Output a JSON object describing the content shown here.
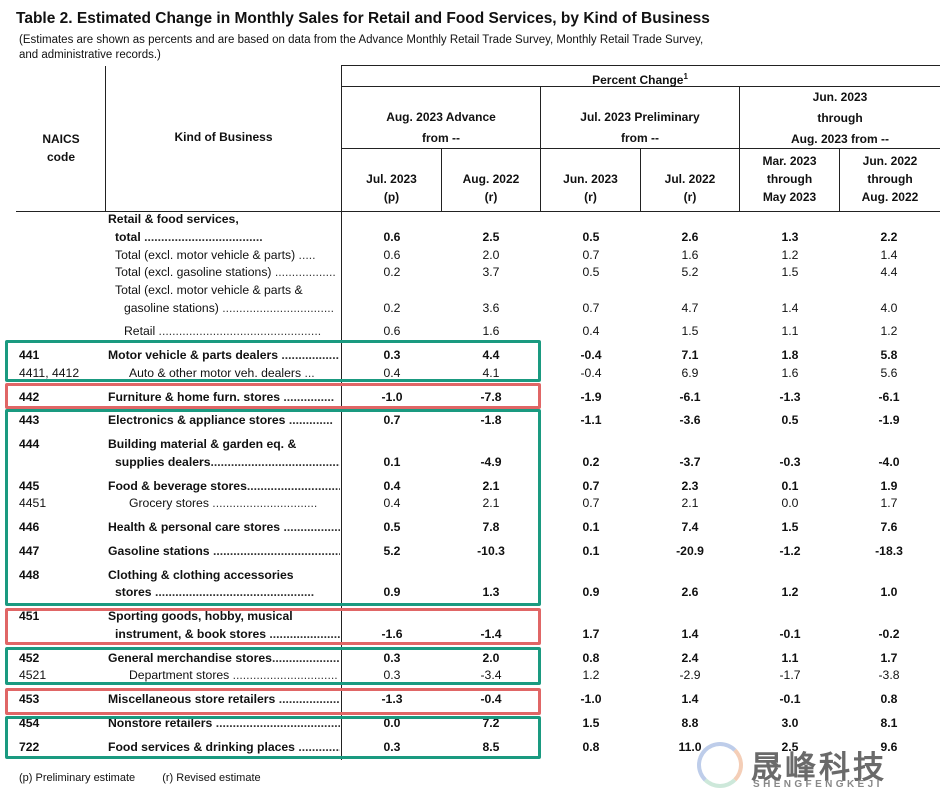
{
  "title": "Table 2.  Estimated Change in Monthly Sales for Retail and Food Services, by Kind of Business",
  "subtitle_line1": "(Estimates are shown as percents and are based on data from the Advance Monthly Retail Trade Survey,  Monthly Retail Trade Survey,",
  "subtitle_line2": "and administrative records.)",
  "header": {
    "naics_1": "NAICS",
    "naics_2": "code",
    "kind": "Kind of Business",
    "percent_change": "Percent Change",
    "superscript": "1",
    "group1_a": "Aug. 2023 Advance",
    "group1_b": "from --",
    "group2_a": "Jul. 2023 Preliminary",
    "group2_b": "from --",
    "group3_a": "Jun. 2023",
    "group3_b": "through",
    "group3_c": "Aug. 2023 from --",
    "col1_a": "Jul. 2023",
    "col1_b": "(p)",
    "col2_a": "Aug. 2022",
    "col2_b": "(r)",
    "col3_a": "Jun. 2023",
    "col3_b": "(r)",
    "col4_a": "Jul. 2022",
    "col4_b": "(r)",
    "col5_a": "Mar. 2023",
    "col5_b": "through",
    "col5_c": "May 2023",
    "col6_a": "Jun. 2022",
    "col6_b": "through",
    "col6_c": "Aug. 2022"
  },
  "rows": {
    "r0": {
      "kind": "Retail & food services,"
    },
    "r1": {
      "kind": "total",
      "dots": " ...................................",
      "v": [
        "0.6",
        "2.5",
        "0.5",
        "2.6",
        "1.3",
        "2.2"
      ]
    },
    "r2": {
      "kind": "Total (excl. motor vehicle & parts)",
      "dots": " .....",
      "v": [
        "0.6",
        "2.0",
        "0.7",
        "1.6",
        "1.2",
        "1.4"
      ]
    },
    "r3": {
      "kind": "Total (excl. gasoline stations)",
      "dots": " ..................",
      "v": [
        "0.2",
        "3.7",
        "0.5",
        "5.2",
        "1.5",
        "4.4"
      ]
    },
    "r4": {
      "kind": "Total (excl. motor vehicle & parts &"
    },
    "r5": {
      "kind": "gasoline stations)",
      "dots": " .................................",
      "v": [
        "0.2",
        "3.6",
        "0.7",
        "4.7",
        "1.4",
        "4.0"
      ]
    },
    "r6": {
      "kind": "Retail",
      "dots": " ................................................",
      "v": [
        "0.6",
        "1.6",
        "0.4",
        "1.5",
        "1.1",
        "1.2"
      ]
    },
    "r7": {
      "code": "441",
      "kind": "Motor vehicle & parts dealers",
      "dots": " .................",
      "v": [
        "0.3",
        "4.4",
        "-0.4",
        "7.1",
        "1.8",
        "5.8"
      ]
    },
    "r8": {
      "code": "4411, 4412",
      "kind": "Auto & other motor veh. dealers",
      "dots": " ...",
      "v": [
        "0.4",
        "4.1",
        "-0.4",
        "6.9",
        "1.6",
        "5.6"
      ]
    },
    "r9": {
      "code": "442",
      "kind": "Furniture & home furn. stores",
      "dots": " ...............",
      "v": [
        "-1.0",
        "-7.8",
        "-1.9",
        "-6.1",
        "-1.3",
        "-6.1"
      ]
    },
    "r10": {
      "code": "443",
      "kind": "Electronics & appliance stores",
      "dots": " .............",
      "v": [
        "0.7",
        "-1.8",
        "-1.1",
        "-3.6",
        "0.5",
        "-1.9"
      ]
    },
    "r11": {
      "code": "444",
      "kind": "Building material & garden eq. &"
    },
    "r12": {
      "kind": "supplies dealers",
      "dots": "..........................................",
      "v": [
        "0.1",
        "-4.9",
        "0.2",
        "-3.7",
        "-0.3",
        "-4.0"
      ]
    },
    "r13": {
      "code": "445",
      "kind": "Food & beverage stores",
      "dots": "...............................",
      "v": [
        "0.4",
        "2.1",
        "0.7",
        "2.3",
        "0.1",
        "1.9"
      ]
    },
    "r14": {
      "code": "4451",
      "kind": "Grocery stores",
      "dots": " ...............................",
      "v": [
        "0.4",
        "2.1",
        "0.7",
        "2.1",
        "0.0",
        "1.7"
      ]
    },
    "r15": {
      "code": "446",
      "kind": "Health & personal care stores",
      "dots": " ...................",
      "v": [
        "0.5",
        "7.8",
        "0.1",
        "7.4",
        "1.5",
        "7.6"
      ]
    },
    "r16": {
      "code": "447",
      "kind": "Gasoline stations",
      "dots": " .........................................",
      "v": [
        "5.2",
        "-10.3",
        "0.1",
        "-20.9",
        "-1.2",
        "-18.3"
      ]
    },
    "r17": {
      "code": "448",
      "kind": "Clothing & clothing accessories"
    },
    "r18": {
      "kind": "stores",
      "dots": " ...............................................",
      "v": [
        "0.9",
        "1.3",
        "0.9",
        "2.6",
        "1.2",
        "1.0"
      ]
    },
    "r19": {
      "code": "451",
      "kind": "Sporting goods, hobby, musical"
    },
    "r20": {
      "kind": "instrument, & book stores",
      "dots": " ..........................",
      "v": [
        "-1.6",
        "-1.4",
        "1.7",
        "1.4",
        "-0.1",
        "-0.2"
      ]
    },
    "r21": {
      "code": "452",
      "kind": "General merchandise stores",
      "dots": "........................",
      "v": [
        "0.3",
        "2.0",
        "0.8",
        "2.4",
        "1.1",
        "1.7"
      ]
    },
    "r22": {
      "code": "4521",
      "kind": "Department stores",
      "dots": " ...............................",
      "v": [
        "0.3",
        "-3.4",
        "1.2",
        "-2.9",
        "-1.7",
        "-3.8"
      ]
    },
    "r23": {
      "code": "453",
      "kind": "Miscellaneous store retailers",
      "dots": " .....................",
      "v": [
        "-1.3",
        "-0.4",
        "-1.0",
        "1.4",
        "-0.1",
        "0.8"
      ]
    },
    "r24": {
      "code": "454",
      "kind": "Nonstore retailers",
      "dots": " .........................................",
      "v": [
        "0.0",
        "7.2",
        "1.5",
        "8.8",
        "3.0",
        "8.1"
      ]
    },
    "r25": {
      "code": "722",
      "kind": "Food services & drinking places",
      "dots": " ..................",
      "v": [
        "0.3",
        "8.5",
        "0.8",
        "11.0",
        "2.5",
        "9.6"
      ]
    }
  },
  "footer": {
    "p_note": "(p)  Preliminary estimate",
    "r_note": "(r)  Revised estimate"
  },
  "logo": {
    "cn": "晟峰科技",
    "en": "SHENGFENGKEJI"
  },
  "colors": {
    "highlight_green": "#1a9a80",
    "highlight_red": "#e06666"
  }
}
